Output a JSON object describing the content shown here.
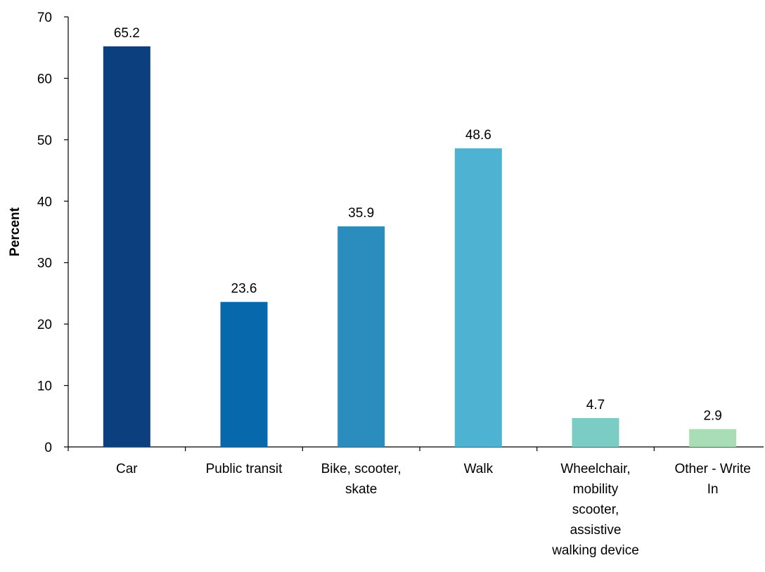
{
  "chart_data": {
    "type": "bar",
    "title": "",
    "xlabel": "",
    "ylabel": "Percent",
    "ylim": [
      0,
      70
    ],
    "yticks": [
      0,
      10,
      20,
      30,
      40,
      50,
      60,
      70
    ],
    "grid": false,
    "legend": "none",
    "categories": [
      [
        "Car"
      ],
      [
        "Public transit"
      ],
      [
        "Bike, scooter,",
        "skate"
      ],
      [
        "Walk"
      ],
      [
        "Wheelchair,",
        "mobility",
        "scooter,",
        "assistive",
        "walking device"
      ],
      [
        "Other - Write",
        "In"
      ]
    ],
    "values": [
      65.2,
      23.6,
      35.9,
      48.6,
      4.7,
      2.9
    ],
    "data_labels": [
      "65.2",
      "23.6",
      "35.9",
      "48.6",
      "4.7",
      "2.9"
    ],
    "colors": [
      "#0b3f7e",
      "#0868ac",
      "#2b8cbe",
      "#4eb3d3",
      "#7bccc4",
      "#a8ddb5"
    ]
  }
}
